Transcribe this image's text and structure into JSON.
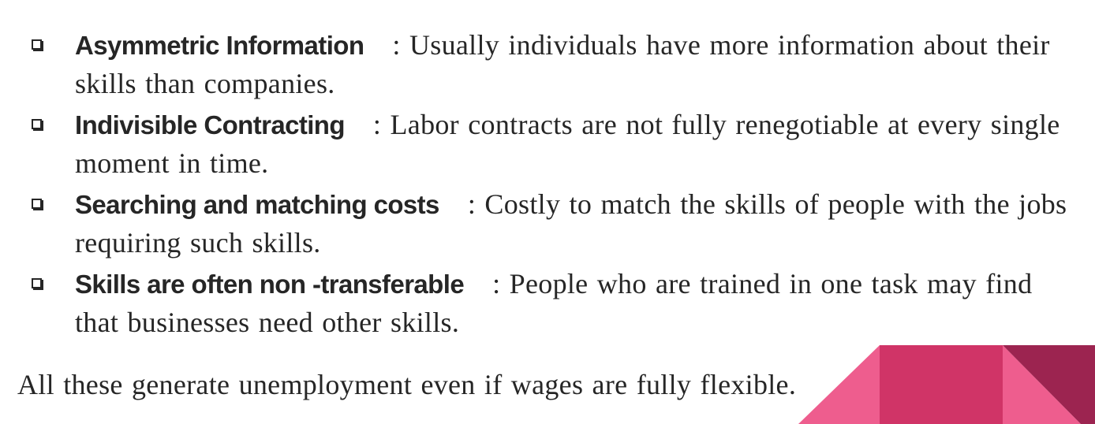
{
  "bullets": [
    {
      "term": "Asymmetric Information",
      "description": ": Usually individuals have more information about their skills than companies."
    },
    {
      "term": "Indivisible Contracting",
      "description": ": Labor contracts are not fully renegotiable at every single moment in time."
    },
    {
      "term": "Searching and matching costs",
      "description": ": Costly to match the skills of people with the jobs requiring such skills."
    },
    {
      "term": "Skills are often non -transferable",
      "description": ": People who are trained in one task may find that businesses need other skills."
    }
  ],
  "summary": "All these generate unemployment even if wages are fully flexible.",
  "colors": {
    "text": "#262626",
    "accent_light": "#ee5d8e",
    "accent_mid": "#d03467",
    "accent_dark": "#9c2450"
  }
}
